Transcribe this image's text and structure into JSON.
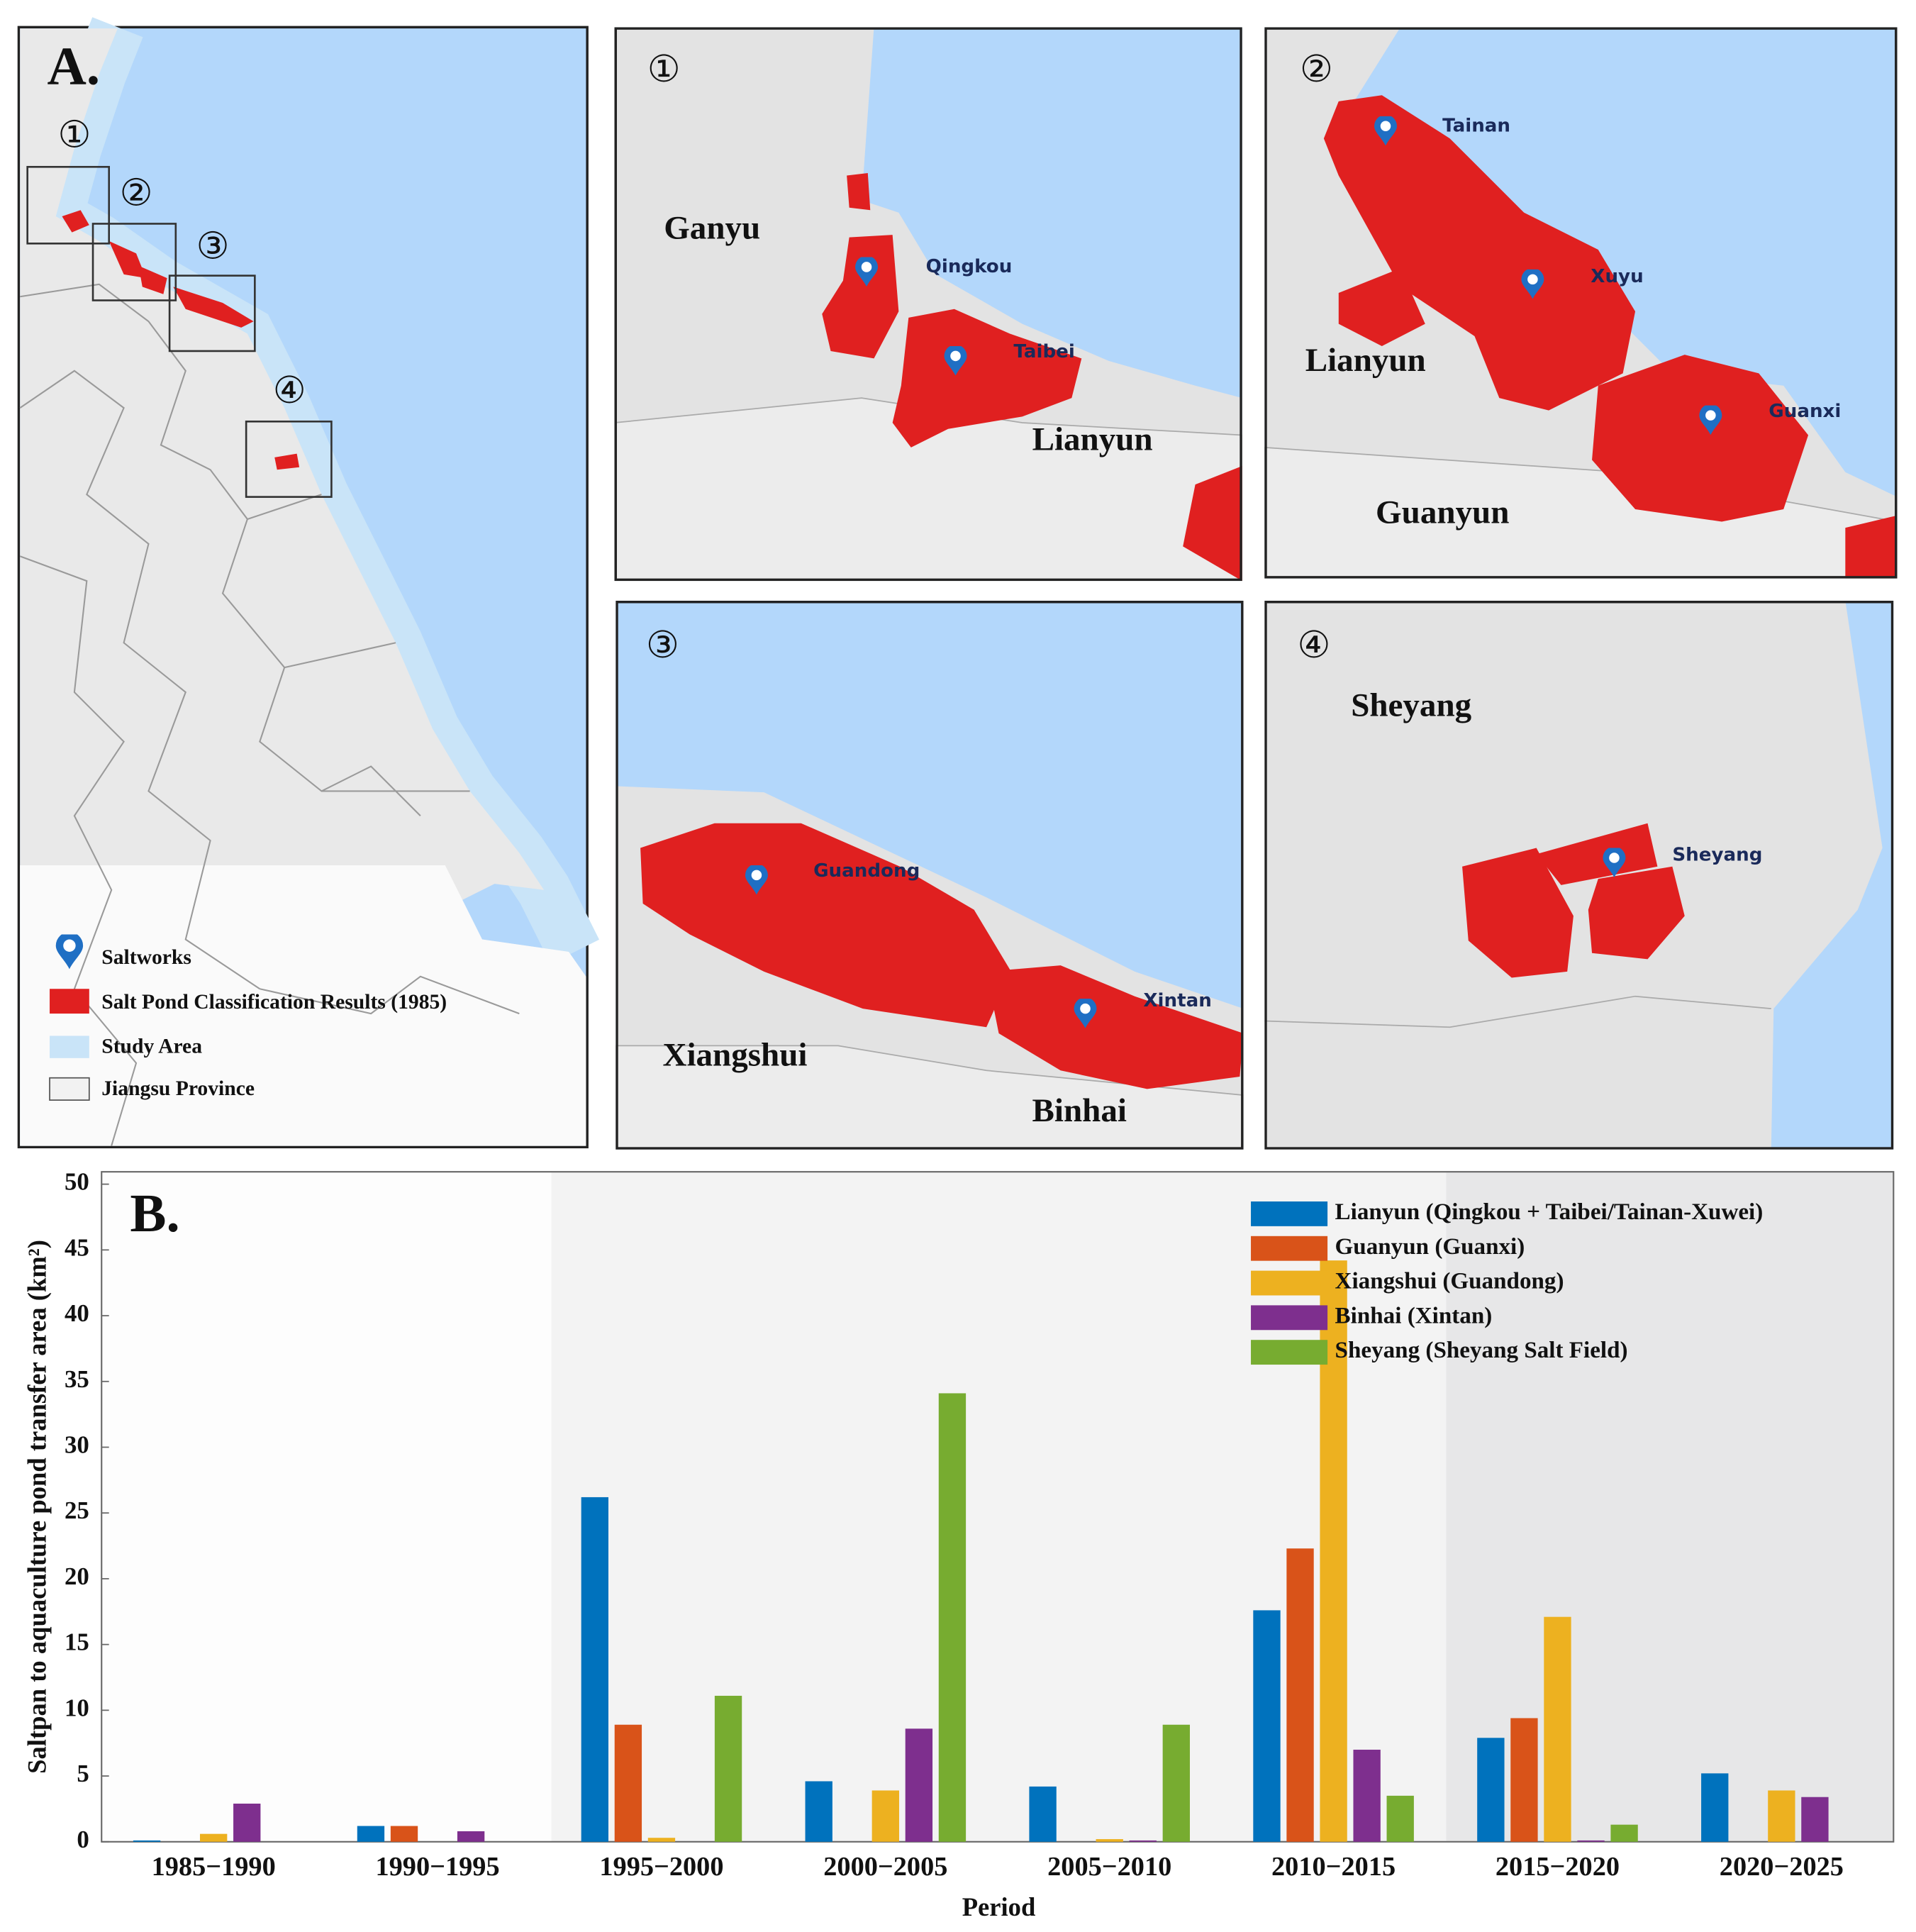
{
  "panel_a": {
    "label": "A.",
    "box_labels": [
      "①",
      "②",
      "③",
      "④"
    ],
    "legend": [
      "Saltworks",
      "Salt Pond Classification Results (1985)",
      "Study Area",
      "Jiangsu Province"
    ]
  },
  "insets": [
    {
      "number": "①",
      "places": [
        "Ganyu",
        "Lianyun"
      ],
      "saltworks": [
        "Qingkou",
        "Taibei"
      ]
    },
    {
      "number": "②",
      "places": [
        "Lianyun",
        "Guanyun"
      ],
      "saltworks": [
        "Tainan",
        "Xuyu",
        "Guanxi"
      ]
    },
    {
      "number": "③",
      "places": [
        "Xiangshui",
        "Binhai"
      ],
      "saltworks": [
        "Guandong",
        "Xintan"
      ]
    },
    {
      "number": "④",
      "places": [
        "Sheyang"
      ],
      "saltworks": [
        "Sheyang"
      ]
    }
  ],
  "chart_data": {
    "type": "bar",
    "panel_label": "B.",
    "y_label": "Saltpan to aquaculture pond transfer area (km²)",
    "x_label": "Period",
    "categories": [
      "1985−1990",
      "1990−1995",
      "1995−2000",
      "2000−2005",
      "2005−2010",
      "2010−2015",
      "2015−2020",
      "2020−2025"
    ],
    "series": [
      {
        "name": "Lianyun (Qingkou + Taibei/Tainan-Xuwei)",
        "color": "#0072bd",
        "values": [
          0.1,
          1.2,
          26.2,
          4.6,
          4.2,
          17.6,
          7.9,
          5.2
        ]
      },
      {
        "name": "Guanyun (Guanxi)",
        "color": "#d95319",
        "values": [
          0,
          1.2,
          8.9,
          0,
          0,
          22.3,
          9.4,
          0
        ]
      },
      {
        "name": "Xiangshui (Guandong)",
        "color": "#edb120",
        "values": [
          0.6,
          0,
          0.3,
          3.9,
          0.2,
          44.2,
          17.1,
          3.9
        ]
      },
      {
        "name": "Binhai (Xintan)",
        "color": "#7e2f8e",
        "values": [
          2.9,
          0.8,
          0,
          8.6,
          0.1,
          7.0,
          0.1,
          3.4
        ]
      },
      {
        "name": "Sheyang (Sheyang Salt Field)",
        "color": "#77ac30",
        "values": [
          0,
          0,
          11.1,
          34.1,
          8.9,
          3.5,
          1.3,
          0
        ]
      }
    ],
    "ylim": [
      0,
      50
    ],
    "yticks": [
      0,
      5,
      10,
      15,
      20,
      25,
      30,
      35,
      40,
      45,
      50
    ],
    "legend": "upper right"
  }
}
